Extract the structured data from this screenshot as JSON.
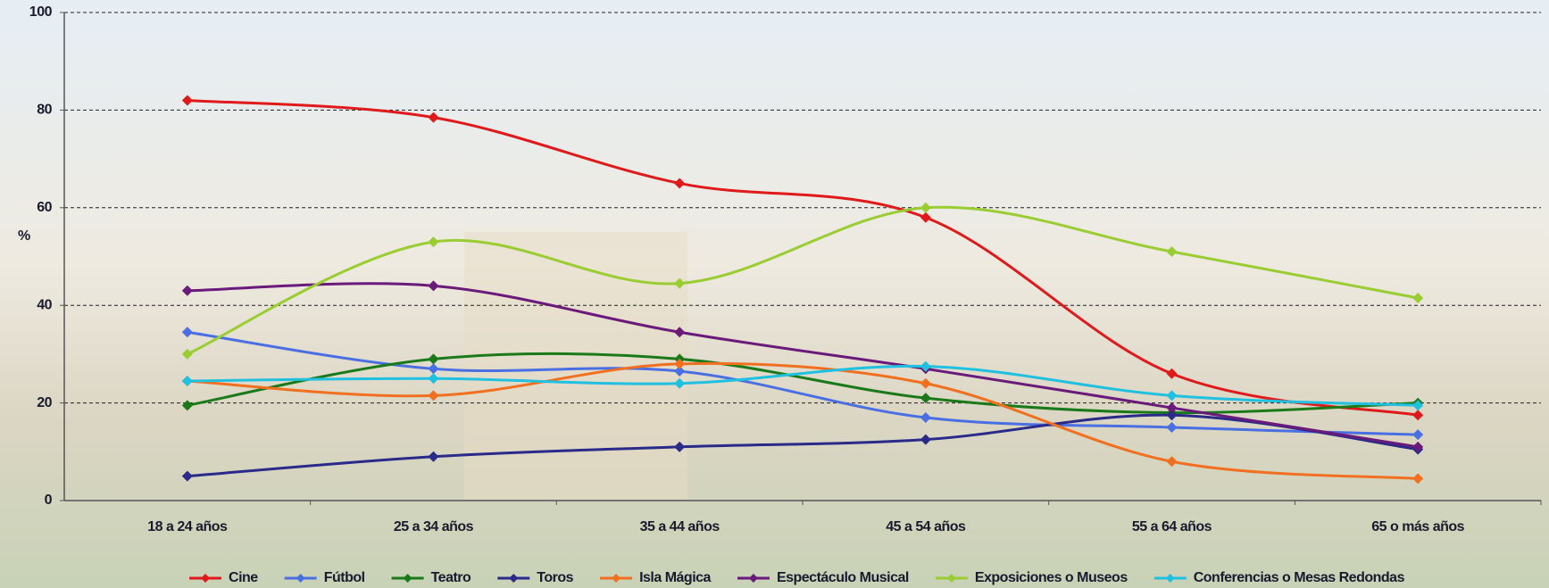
{
  "chart_data": {
    "type": "line",
    "y_label": "%",
    "categories": [
      "18 a 24 años",
      "25 a 34 años",
      "35 a 44 años",
      "45 a 54 años",
      "55 a 64 años",
      "65 o más años"
    ],
    "ylim": [
      0,
      100
    ],
    "yticks": [
      0,
      20,
      40,
      60,
      80,
      100
    ],
    "grid": true,
    "smooth": true,
    "legend": "bottom",
    "series": [
      {
        "name": "Cine",
        "color": "#e0191b",
        "values": [
          82,
          78.5,
          65,
          58,
          26,
          17.5
        ]
      },
      {
        "name": "Fútbol",
        "color": "#4a6fe3",
        "values": [
          34.5,
          27,
          26.5,
          17,
          15,
          13.5
        ]
      },
      {
        "name": "Teatro",
        "color": "#1a7a1a",
        "values": [
          19.5,
          29,
          29,
          21,
          18,
          20
        ]
      },
      {
        "name": "Toros",
        "color": "#2a2a8a",
        "values": [
          5,
          9,
          11,
          12.5,
          17.5,
          10.5
        ]
      },
      {
        "name": "Isla Mágica",
        "color": "#f07020",
        "values": [
          24.5,
          21.5,
          28,
          24,
          8,
          4.5
        ]
      },
      {
        "name": "Espectáculo Musical",
        "color": "#6a1a7a",
        "values": [
          43,
          44,
          34.5,
          27,
          19,
          11
        ]
      },
      {
        "name": "Exposiciones o Museos",
        "color": "#9acd32",
        "values": [
          30,
          53,
          44.5,
          60,
          51,
          41.5
        ]
      },
      {
        "name": "Conferencias o Mesas Redondas",
        "color": "#20c0e0",
        "values": [
          24.5,
          25,
          24,
          27.5,
          21.5,
          19.5
        ]
      }
    ]
  }
}
